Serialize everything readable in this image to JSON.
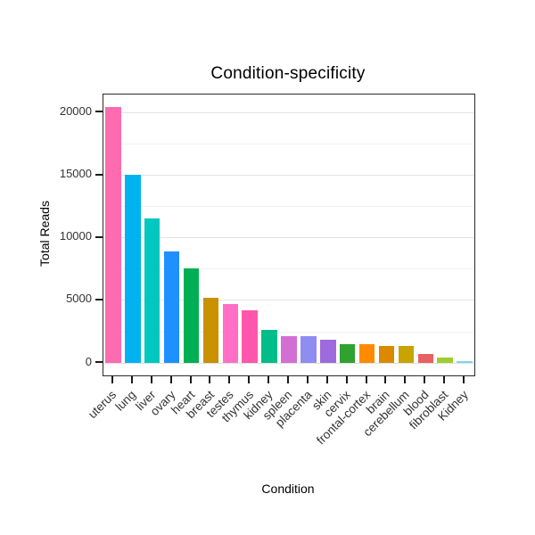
{
  "chart_data": {
    "type": "bar",
    "title": "Condition-specificity",
    "xlabel": "Condition",
    "ylabel": "Total Reads",
    "categories": [
      "uterus",
      "lung",
      "liver",
      "ovary",
      "heart",
      "breast",
      "testes",
      "thymus",
      "kidney",
      "spleen",
      "placenta",
      "skin",
      "cervix",
      "frontal-cortex",
      "brain",
      "cerebellum",
      "blood",
      "fibroblast",
      "Kidney"
    ],
    "values": [
      20400,
      15000,
      11500,
      8900,
      7500,
      5200,
      4700,
      4150,
      2600,
      2100,
      2100,
      1800,
      1500,
      1450,
      1350,
      1350,
      700,
      400,
      120
    ],
    "colors": [
      "#FF6BAF",
      "#00B3F0",
      "#00C7C0",
      "#1E90FF",
      "#00AF54",
      "#C99000",
      "#FF6FC5",
      "#FF57AD",
      "#00BD8A",
      "#D36FD3",
      "#8F8CF2",
      "#9E6BDE",
      "#2FA22F",
      "#FF8A00",
      "#DB8A00",
      "#C9A400",
      "#E86060",
      "#9FCC2E",
      "#7FD4E8"
    ],
    "ylim": [
      0,
      21420
    ],
    "yticks": [
      0,
      5000,
      10000,
      15000,
      20000
    ],
    "yticks_minor": [
      2500,
      7500,
      12500,
      17500
    ],
    "grid": "major+minor horizontal",
    "legend": "none",
    "panel_border": "#2a2a2a",
    "gridline_major_color": "#e2e2e2",
    "gridline_minor_color": "#f2f2f2"
  }
}
